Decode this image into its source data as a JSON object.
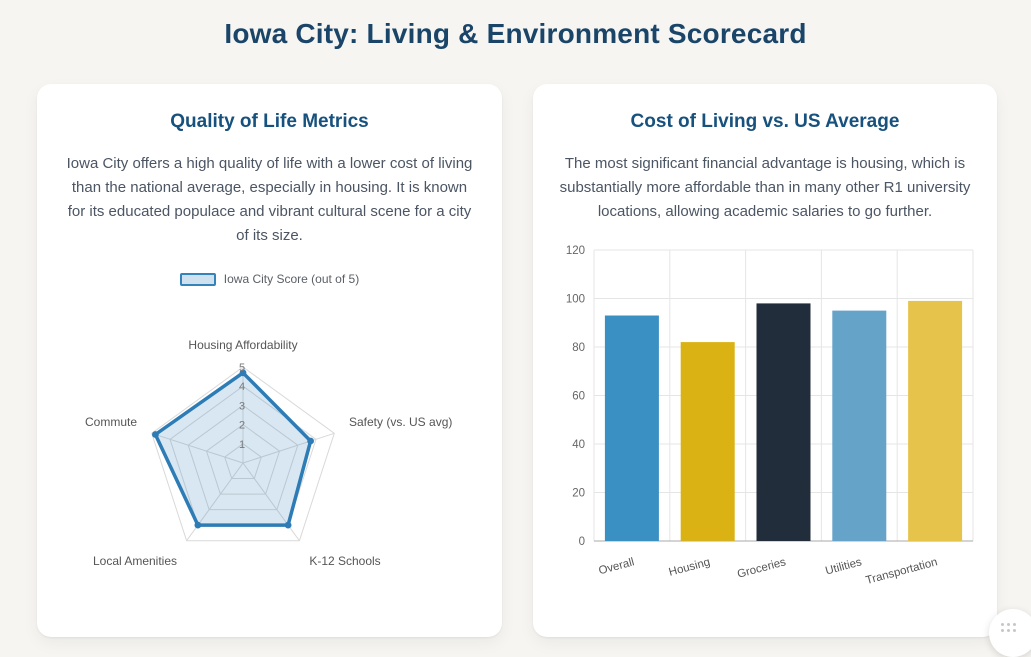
{
  "page": {
    "title": "Iowa City: Living & Environment Scorecard"
  },
  "quality_card": {
    "title": "Quality of Life Metrics",
    "description": "Iowa City offers a high quality of life with a lower cost of living than the national average, especially in housing. It is known for its educated populace and vibrant cultural scene for a city of its size.",
    "legend_label": "Iowa City Score (out of 5)"
  },
  "cost_card": {
    "title": "Cost of Living vs. US Average",
    "description": "The most significant financial advantage is housing, which is substantially more affordable than in many other R1 university locations, allowing academic salaries to go further."
  },
  "chart_data": [
    {
      "type": "radar",
      "title": "Quality of Life Metrics",
      "legend": [
        "Iowa City Score (out of 5)"
      ],
      "legend_position": "top",
      "categories": [
        "Housing Affordability",
        "Safety (vs. US avg)",
        "K-12 Schools",
        "Local Amenities",
        "Commute"
      ],
      "series": [
        {
          "name": "Iowa City Score (out of 5)",
          "values": [
            4.7,
            3.7,
            4.0,
            4.0,
            4.8
          ]
        }
      ],
      "max": 5,
      "ring_ticks": [
        1,
        2,
        3,
        4,
        5
      ],
      "grid": true,
      "line_color": "#2e7cb5",
      "fill_color": "rgba(46,124,181,0.18)",
      "grid_color": "#d9d9d9"
    },
    {
      "type": "bar",
      "title": "Cost of Living vs. US Average",
      "categories": [
        "Overall",
        "Housing",
        "Groceries",
        "Utilities",
        "Transportation"
      ],
      "values": [
        93,
        82,
        98,
        95,
        99
      ],
      "bar_colors": [
        "#3a90c3",
        "#dbb214",
        "#212d3a",
        "#66a3c9",
        "#e6c44c"
      ],
      "xlabel": "",
      "ylabel": "",
      "ylim": [
        0,
        120
      ],
      "yticks": [
        0,
        20,
        40,
        60,
        80,
        100,
        120
      ],
      "grid": true,
      "legend_position": "none"
    }
  ]
}
